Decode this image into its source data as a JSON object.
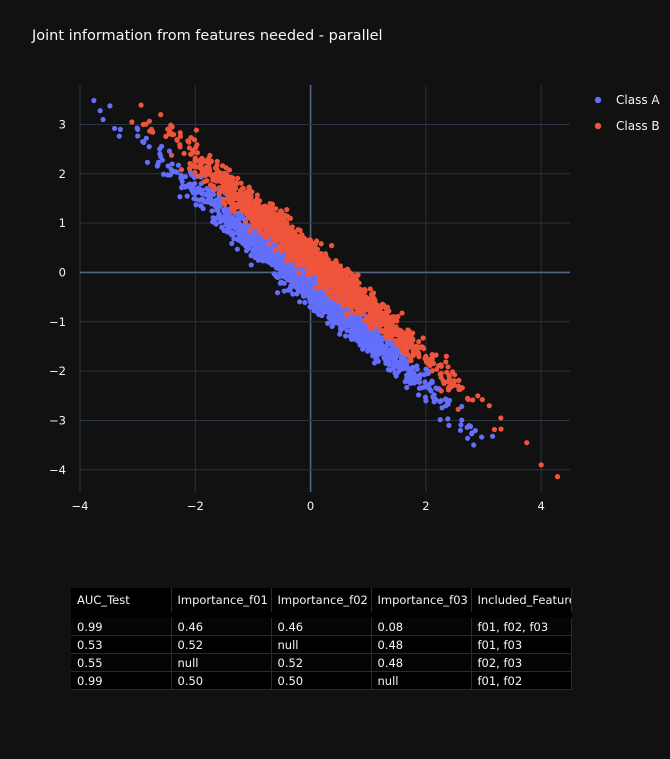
{
  "title": "Joint information from features needed - parallel",
  "chart_data": {
    "type": "scatter",
    "title": "Joint information from features needed - parallel",
    "xlim": [
      -4.0,
      4.5
    ],
    "ylim": [
      -4.45,
      3.8
    ],
    "x_ticks": [
      -4,
      -2,
      0,
      2,
      4
    ],
    "y_ticks": [
      -4,
      -3,
      -2,
      -1,
      0,
      1,
      2,
      3
    ],
    "x_tick_labels": [
      "−4",
      "−2",
      "0",
      "2",
      "4"
    ],
    "y_tick_labels": [
      "−4",
      "−3",
      "−2",
      "−1",
      "0",
      "1",
      "2",
      "3"
    ],
    "grid": true,
    "legend_position": "top-right",
    "series": [
      {
        "name": "Class A",
        "color": "#636efa",
        "description_of_shape": "dense band along y = -x, offset below",
        "sample_points": [
          [
            -3.65,
            3.28
          ],
          [
            -3.6,
            3.1
          ],
          [
            -3.4,
            2.92
          ],
          [
            -3.3,
            2.9
          ],
          [
            -3.0,
            2.9
          ],
          [
            -2.8,
            2.55
          ],
          [
            -2.6,
            2.35
          ],
          [
            -2.4,
            2.2
          ],
          [
            -2.0,
            1.6
          ],
          [
            -1.5,
            0.85
          ],
          [
            -1.0,
            0.45
          ],
          [
            -0.5,
            -0.05
          ],
          [
            0.0,
            -0.6
          ],
          [
            0.5,
            -1.05
          ],
          [
            1.0,
            -1.55
          ],
          [
            1.5,
            -1.9
          ],
          [
            2.0,
            -2.6
          ],
          [
            2.4,
            -3.1
          ],
          [
            2.6,
            -3.2
          ],
          [
            2.8,
            -3.25
          ]
        ]
      },
      {
        "name": "Class B",
        "color": "#ef553b",
        "description_of_shape": "dense band along y = -x, offset above",
        "sample_points": [
          [
            -3.1,
            3.05
          ],
          [
            -2.9,
            3.0
          ],
          [
            -2.6,
            3.2
          ],
          [
            -2.4,
            2.95
          ],
          [
            -2.0,
            2.3
          ],
          [
            -1.5,
            1.7
          ],
          [
            -1.0,
            1.25
          ],
          [
            -0.5,
            0.75
          ],
          [
            0.0,
            0.25
          ],
          [
            0.5,
            -0.2
          ],
          [
            1.0,
            -0.65
          ],
          [
            1.5,
            -1.2
          ],
          [
            2.0,
            -1.7
          ],
          [
            2.5,
            -2.2
          ],
          [
            2.9,
            -2.5
          ],
          [
            3.1,
            -2.7
          ],
          [
            3.3,
            -2.95
          ],
          [
            3.75,
            -3.45
          ],
          [
            4.0,
            -3.9
          ]
        ]
      }
    ]
  },
  "legend": [
    {
      "label": "Class A",
      "color": "#636efa"
    },
    {
      "label": "Class B",
      "color": "#ef553b"
    }
  ],
  "table": {
    "headers": [
      "AUC_Test",
      "Importance_f01",
      "Importance_f02",
      "Importance_f03",
      "Included_Features"
    ],
    "rows": [
      [
        "0.99",
        "0.46",
        "0.46",
        "0.08",
        "f01, f02, f03"
      ],
      [
        "0.53",
        "0.52",
        "null",
        "0.48",
        "f01, f03"
      ],
      [
        "0.55",
        "null",
        "0.52",
        "0.48",
        "f02, f03"
      ],
      [
        "0.99",
        "0.50",
        "0.50",
        "null",
        "f01, f02"
      ]
    ]
  }
}
